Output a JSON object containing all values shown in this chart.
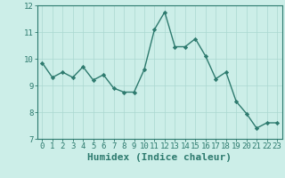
{
  "x": [
    0,
    1,
    2,
    3,
    4,
    5,
    6,
    7,
    8,
    9,
    10,
    11,
    12,
    13,
    14,
    15,
    16,
    17,
    18,
    19,
    20,
    21,
    22,
    23
  ],
  "y": [
    9.85,
    9.3,
    9.5,
    9.3,
    9.7,
    9.2,
    9.4,
    8.9,
    8.75,
    8.75,
    9.6,
    11.1,
    11.75,
    10.45,
    10.45,
    10.75,
    10.1,
    9.25,
    9.5,
    8.4,
    7.95,
    7.4,
    7.6,
    7.6
  ],
  "line_color": "#2d7a6e",
  "marker": "D",
  "marker_size": 2.2,
  "bg_color": "#cceee8",
  "grid_color": "#aad8d0",
  "xlabel": "Humidex (Indice chaleur)",
  "ylim": [
    7,
    12
  ],
  "xlim": [
    -0.5,
    23.5
  ],
  "yticks": [
    7,
    8,
    9,
    10,
    11,
    12
  ],
  "xticks": [
    0,
    1,
    2,
    3,
    4,
    5,
    6,
    7,
    8,
    9,
    10,
    11,
    12,
    13,
    14,
    15,
    16,
    17,
    18,
    19,
    20,
    21,
    22,
    23
  ],
  "tick_color": "#2d7a6e",
  "label_color": "#2d7a6e",
  "xlabel_fontsize": 8,
  "tick_fontsize": 6.5,
  "linewidth": 1.0
}
